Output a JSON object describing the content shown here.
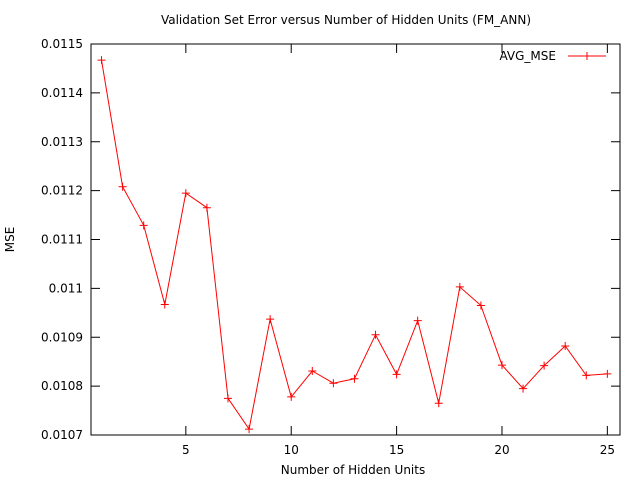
{
  "chart_data": {
    "type": "line",
    "title": "Validation Set Error versus Number of Hidden Units (FM_ANN)",
    "xlabel": "Number of Hidden Units",
    "ylabel": "MSE",
    "xlim": [
      0.5,
      25.6
    ],
    "ylim": [
      0.0107,
      0.0115
    ],
    "x_ticks": [
      5,
      10,
      15,
      20,
      25
    ],
    "x_tick_labels": [
      "5",
      "10",
      "15",
      "20",
      "25"
    ],
    "y_ticks": [
      0.0107,
      0.0108,
      0.0109,
      0.011,
      0.0111,
      0.0112,
      0.0113,
      0.0114,
      0.0115
    ],
    "y_tick_labels": [
      "0.0107",
      "0.0108",
      "0.0109",
      "0.011",
      "0.0111",
      "0.0112",
      "0.0113",
      "0.0114",
      "0.0115"
    ],
    "grid": false,
    "legend_position": "top-right",
    "series": [
      {
        "name": "AVG_MSE",
        "color": "#ff0000",
        "marker": "plus",
        "x": [
          1,
          2,
          3,
          4,
          5,
          6,
          7,
          8,
          9,
          10,
          11,
          12,
          13,
          14,
          15,
          16,
          17,
          18,
          19,
          20,
          21,
          22,
          23,
          24,
          25
        ],
        "values": [
          0.011467,
          0.011208,
          0.011129,
          0.010967,
          0.011195,
          0.011165,
          0.010775,
          0.010712,
          0.010937,
          0.010778,
          0.010831,
          0.010806,
          0.010815,
          0.010905,
          0.010824,
          0.010934,
          0.010765,
          0.011003,
          0.010965,
          0.010843,
          0.010795,
          0.010842,
          0.010882,
          0.010822,
          0.010825
        ]
      }
    ]
  }
}
